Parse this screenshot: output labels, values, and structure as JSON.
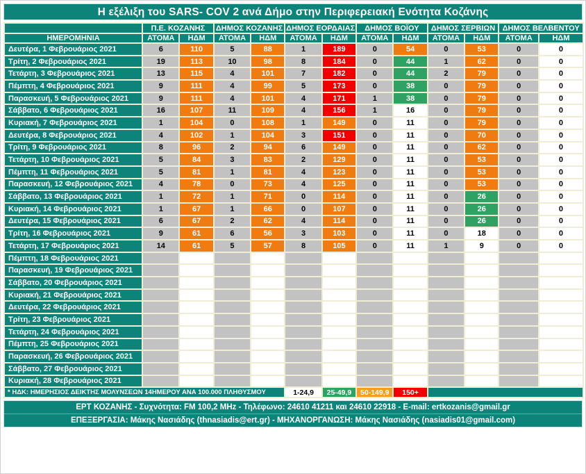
{
  "colors": {
    "teal": "#0E837A",
    "cell_border_cream": "#EFEDD6",
    "atoma_gray": "#C2C2C2",
    "hdm_orange": "#F07B11",
    "hdm_green": "#2FA263",
    "hdm_red": "#F20000",
    "hdm_white": "#FFFFFF",
    "legend_amber": "#F0A01E"
  },
  "chart_data": {
    "type": "table",
    "title": "Η εξέλιξη του SARS- COV 2 ανά Δήμο στην Περιφερειακή Ενότητα Κοζάνης",
    "date_column_header": "ΗΜΕΡΟΜΗΝΙΑ",
    "group_headers": [
      "Π.Ε. ΚΟΖΑΝΗΣ",
      "ΔΗΜΟΣ ΚΟΖΑΝΗΣ",
      "ΔΗΜΟΣ ΕΟΡΔΑΙΑΣ",
      "ΔΗΜΟΣ ΒΟΪΟΥ",
      "ΔΗΜΟΣ ΣΕΡΒΙΩΝ",
      "ΔΗΜΟΣ ΒΕΛΒΕΝΤΟΥ"
    ],
    "sub_headers": [
      "ΑΤΟΜΑ",
      "ΗΔΜ"
    ],
    "hdm_color_thresholds": {
      "white_max": 24.9,
      "green_max": 49.9,
      "orange_max": 149.9,
      "red_min": 150
    },
    "rows": [
      {
        "date": "Δευτέρα, 1 Φεβρουάριος 2021",
        "values": [
          6,
          110,
          5,
          88,
          1,
          189,
          0,
          54,
          0,
          53,
          0,
          0
        ]
      },
      {
        "date": "Τρίτη, 2 Φεβρουάριος 2021",
        "values": [
          19,
          113,
          10,
          98,
          8,
          184,
          0,
          44,
          1,
          62,
          0,
          0
        ]
      },
      {
        "date": "Τετάρτη, 3 Φεβρουάριος 2021",
        "values": [
          13,
          115,
          4,
          101,
          7,
          182,
          0,
          44,
          2,
          79,
          0,
          0
        ]
      },
      {
        "date": "Πέμπτη, 4 Φεβρουάριος 2021",
        "values": [
          9,
          111,
          4,
          99,
          5,
          173,
          0,
          38,
          0,
          79,
          0,
          0
        ]
      },
      {
        "date": "Παρασκευή, 5 Φεβρουάριος 2021",
        "values": [
          9,
          111,
          4,
          101,
          4,
          171,
          1,
          38,
          0,
          79,
          0,
          0
        ]
      },
      {
        "date": "Σάββατο, 6 Φεβρουάριος 2021",
        "values": [
          16,
          107,
          11,
          109,
          4,
          156,
          1,
          16,
          0,
          79,
          0,
          0
        ]
      },
      {
        "date": "Κυριακή, 7 Φεβρουάριος 2021",
        "values": [
          1,
          104,
          0,
          108,
          1,
          149,
          0,
          11,
          0,
          79,
          0,
          0
        ]
      },
      {
        "date": "Δευτέρα, 8 Φεβρουάριος 2021",
        "values": [
          4,
          102,
          1,
          104,
          3,
          151,
          0,
          11,
          0,
          70,
          0,
          0
        ]
      },
      {
        "date": "Τρίτη, 9 Φεβρουάριος 2021",
        "values": [
          8,
          96,
          2,
          94,
          6,
          149,
          0,
          11,
          0,
          62,
          0,
          0
        ]
      },
      {
        "date": "Τετάρτη, 10 Φεβρουάριος 2021",
        "values": [
          5,
          84,
          3,
          83,
          2,
          129,
          0,
          11,
          0,
          53,
          0,
          0
        ]
      },
      {
        "date": "Πέμπτη, 11 Φεβρουάριος 2021",
        "values": [
          5,
          81,
          1,
          81,
          4,
          123,
          0,
          11,
          0,
          53,
          0,
          0
        ]
      },
      {
        "date": "Παρασκευή, 12 Φεβρουάριος 2021",
        "values": [
          4,
          78,
          0,
          73,
          4,
          125,
          0,
          11,
          0,
          53,
          0,
          0
        ]
      },
      {
        "date": "Σάββατο, 13 Φεβρουάριος 2021",
        "values": [
          1,
          72,
          1,
          71,
          0,
          114,
          0,
          11,
          0,
          26,
          0,
          0
        ]
      },
      {
        "date": "Κυριακή, 14 Φεβρουάριος 2021",
        "values": [
          1,
          67,
          1,
          66,
          0,
          107,
          0,
          11,
          0,
          26,
          0,
          0
        ]
      },
      {
        "date": "Δευτέρα, 15 Φεβρουάριος 2021",
        "values": [
          6,
          67,
          2,
          62,
          4,
          114,
          0,
          11,
          0,
          26,
          0,
          0
        ]
      },
      {
        "date": "Τρίτη, 16 Φεβρουάριος 2021",
        "values": [
          9,
          61,
          6,
          56,
          3,
          103,
          0,
          11,
          0,
          18,
          0,
          0
        ]
      },
      {
        "date": "Τετάρτη, 17 Φεβρουάριος 2021",
        "values": [
          14,
          61,
          5,
          57,
          8,
          105,
          0,
          11,
          1,
          9,
          0,
          0
        ]
      },
      {
        "date": "Πέμπτη, 18 Φεβρουάριος 2021",
        "values": [
          "",
          "",
          "",
          "",
          "",
          "",
          "",
          "",
          "",
          "",
          "",
          ""
        ]
      },
      {
        "date": "Παρασκευή, 19 Φεβρουάριος 2021",
        "values": [
          "",
          "",
          "",
          "",
          "",
          "",
          "",
          "",
          "",
          "",
          "",
          ""
        ]
      },
      {
        "date": "Σάββατο, 20 Φεβρουάριος 2021",
        "values": [
          "",
          "",
          "",
          "",
          "",
          "",
          "",
          "",
          "",
          "",
          "",
          ""
        ]
      },
      {
        "date": "Κυριακή, 21 Φεβρουάριος 2021",
        "values": [
          "",
          "",
          "",
          "",
          "",
          "",
          "",
          "",
          "",
          "",
          "",
          ""
        ]
      },
      {
        "date": "Δευτέρα, 22 Φεβρουάριος 2021",
        "values": [
          "",
          "",
          "",
          "",
          "",
          "",
          "",
          "",
          "",
          "",
          "",
          ""
        ]
      },
      {
        "date": "Τρίτη, 23 Φεβρουάριος 2021",
        "values": [
          "",
          "",
          "",
          "",
          "",
          "",
          "",
          "",
          "",
          "",
          "",
          ""
        ]
      },
      {
        "date": "Τετάρτη, 24 Φεβρουάριος 2021",
        "values": [
          "",
          "",
          "",
          "",
          "",
          "",
          "",
          "",
          "",
          "",
          "",
          ""
        ]
      },
      {
        "date": "Πέμπτη, 25 Φεβρουάριος 2021",
        "values": [
          "",
          "",
          "",
          "",
          "",
          "",
          "",
          "",
          "",
          "",
          "",
          ""
        ]
      },
      {
        "date": "Παρασκευή, 26 Φεβρουάριος 2021",
        "values": [
          "",
          "",
          "",
          "",
          "",
          "",
          "",
          "",
          "",
          "",
          "",
          ""
        ]
      },
      {
        "date": "Σάββατο, 27 Φεβρουάριος 2021",
        "values": [
          "",
          "",
          "",
          "",
          "",
          "",
          "",
          "",
          "",
          "",
          "",
          ""
        ]
      },
      {
        "date": "Κυριακή, 28 Φεβρουάριος 2021",
        "values": [
          "",
          "",
          "",
          "",
          "",
          "",
          "",
          "",
          "",
          "",
          "",
          ""
        ]
      }
    ]
  },
  "legend": {
    "note": "* ΗΔΚ: ΗΜΕΡΗΣΙΟΣ ΔΕΙΚΤΗΣ ΜΟΛΥΝΣΕΩΝ 14ΗΜΕΡΟΥ ΑΝΑ 100.000 ΠΛΗΘΥΣΜΟΥ",
    "bins": [
      {
        "label": "1-24,9",
        "bg": "#FFFFFF",
        "fg": "#000000"
      },
      {
        "label": "25-49,9",
        "bg": "#2FA263",
        "fg": "#FFFFFF"
      },
      {
        "label": "50-149,9",
        "bg": "#F0A01E",
        "fg": "#FFFFFF"
      },
      {
        "label": "150+",
        "bg": "#F20000",
        "fg": "#FFFFFF"
      }
    ]
  },
  "footer": {
    "line1": "ΕΡΤ ΚΟΖΑΝΗΣ - Συχνότητα:  FM 100,2 MHz - Τηλέφωνο: 24610 41211 και 24610 22918 - E-mail: ertkozanis@gmail.gr",
    "line2": "ΕΠΕΞΕΡΓΑΣΙΑ: Μάκης Νασιάδης (thnasiadis@ert.gr) - ΜΗΧΑΝΟΡΓΑΝΩΣΗ: Μάκης Νασιάδης (nasiadis01@gmail.com)"
  }
}
